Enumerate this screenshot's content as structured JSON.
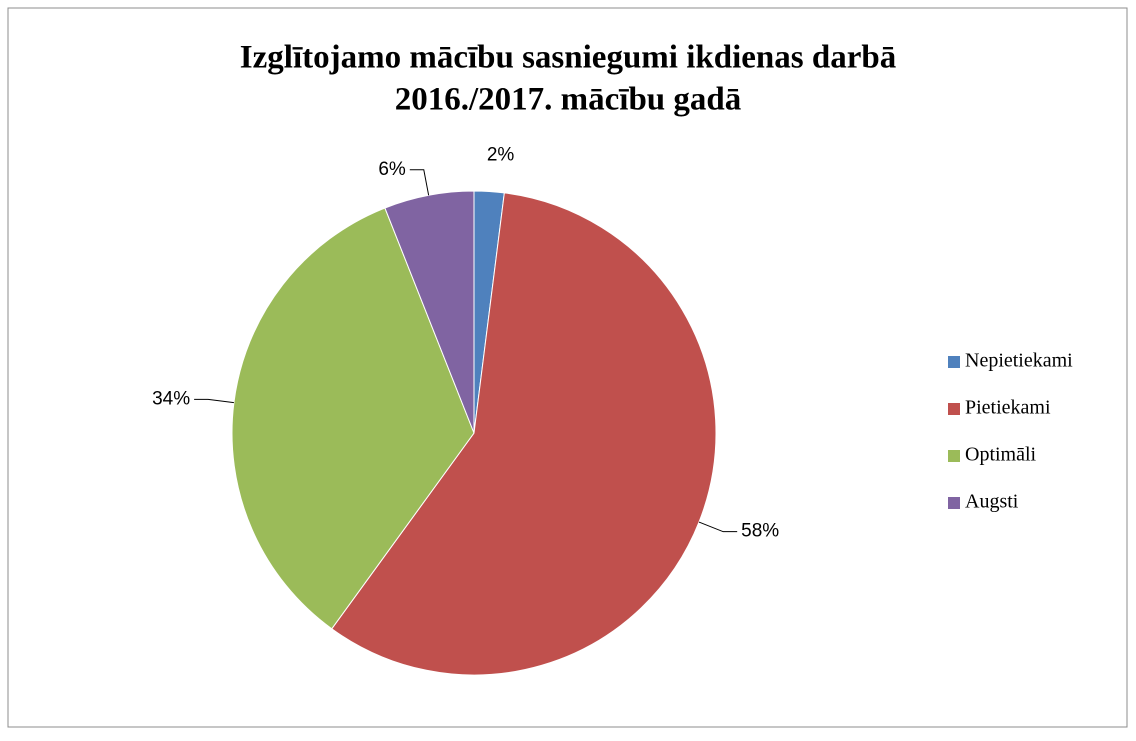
{
  "chart_data": {
    "type": "pie",
    "title": [
      "Izglītojamo mācību sasniegumi ikdienas darbā",
      "2016./2017. mācību gadā"
    ],
    "categories": [
      "Nepietiekami",
      "Pietiekami",
      "Optimāli",
      "Augsti"
    ],
    "values": [
      2,
      58,
      34,
      6
    ],
    "value_labels": [
      "2%",
      "58%",
      "34%",
      "6%"
    ],
    "colors": [
      "#4f81bd",
      "#c0504d",
      "#9bbb59",
      "#8064a2"
    ],
    "legend": "right"
  }
}
